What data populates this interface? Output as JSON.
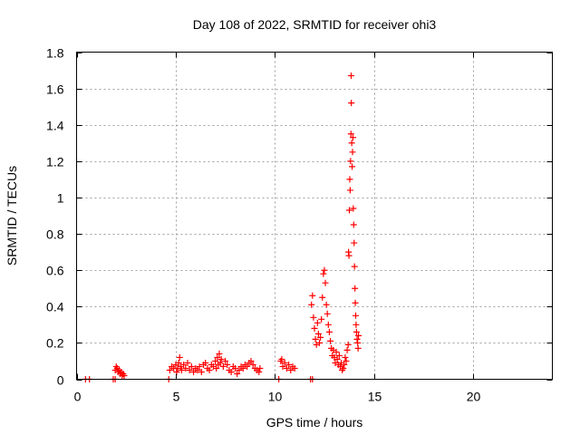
{
  "chart_data": {
    "type": "scatter",
    "title": "Day 108 of 2022, SRMTID for receiver ohi3",
    "xlabel": "GPS time / hours",
    "ylabel": "SRMTID / TECUs",
    "xlim": [
      0,
      24
    ],
    "ylim": [
      0,
      1.8
    ],
    "xticks": [
      0,
      5,
      10,
      15,
      20
    ],
    "xtick_labels": [
      "0",
      "5",
      "10",
      "15",
      "20"
    ],
    "yticks": [
      0,
      0.2,
      0.4,
      0.6,
      0.8,
      1.0,
      1.2,
      1.4,
      1.6,
      1.8
    ],
    "ytick_labels": [
      "0",
      "0.2",
      "0.4",
      "0.6",
      "0.8",
      "1",
      "1.2",
      "1.4",
      "1.6",
      "1.8"
    ],
    "grid": true,
    "marker": "+",
    "color": "#ff0000",
    "series": [
      {
        "name": "SRMTID",
        "points": [
          [
            0.45,
            0.0
          ],
          [
            0.65,
            0.0
          ],
          [
            1.85,
            0.0
          ],
          [
            1.95,
            0.0
          ],
          [
            4.65,
            0.0
          ],
          [
            10.2,
            0.0
          ],
          [
            11.8,
            0.0
          ],
          [
            11.9,
            0.0
          ],
          [
            1.95,
            0.05
          ],
          [
            2.0,
            0.07
          ],
          [
            2.05,
            0.06
          ],
          [
            2.1,
            0.04
          ],
          [
            2.15,
            0.05
          ],
          [
            2.2,
            0.03
          ],
          [
            2.25,
            0.04
          ],
          [
            2.3,
            0.02
          ],
          [
            2.35,
            0.03
          ],
          [
            2.4,
            0.02
          ],
          [
            4.7,
            0.05
          ],
          [
            4.8,
            0.07
          ],
          [
            4.9,
            0.06
          ],
          [
            5.0,
            0.08
          ],
          [
            5.05,
            0.04
          ],
          [
            5.1,
            0.06
          ],
          [
            5.15,
            0.09
          ],
          [
            5.2,
            0.12
          ],
          [
            5.25,
            0.07
          ],
          [
            5.3,
            0.05
          ],
          [
            5.4,
            0.08
          ],
          [
            5.5,
            0.06
          ],
          [
            5.6,
            0.09
          ],
          [
            5.7,
            0.05
          ],
          [
            5.8,
            0.07
          ],
          [
            5.9,
            0.04
          ],
          [
            6.0,
            0.06
          ],
          [
            6.1,
            0.05
          ],
          [
            6.2,
            0.07
          ],
          [
            6.3,
            0.04
          ],
          [
            6.4,
            0.08
          ],
          [
            6.5,
            0.09
          ],
          [
            6.6,
            0.06
          ],
          [
            6.7,
            0.05
          ],
          [
            6.8,
            0.08
          ],
          [
            6.9,
            0.07
          ],
          [
            7.0,
            0.1
          ],
          [
            7.05,
            0.06
          ],
          [
            7.1,
            0.12
          ],
          [
            7.15,
            0.08
          ],
          [
            7.2,
            0.14
          ],
          [
            7.25,
            0.09
          ],
          [
            7.3,
            0.11
          ],
          [
            7.4,
            0.07
          ],
          [
            7.5,
            0.1
          ],
          [
            7.6,
            0.08
          ],
          [
            7.7,
            0.05
          ],
          [
            7.8,
            0.04
          ],
          [
            7.9,
            0.07
          ],
          [
            8.0,
            0.06
          ],
          [
            8.1,
            0.03
          ],
          [
            8.2,
            0.05
          ],
          [
            8.3,
            0.07
          ],
          [
            8.4,
            0.06
          ],
          [
            8.5,
            0.08
          ],
          [
            8.6,
            0.07
          ],
          [
            8.7,
            0.09
          ],
          [
            8.8,
            0.1
          ],
          [
            8.9,
            0.08
          ],
          [
            9.0,
            0.06
          ],
          [
            9.1,
            0.05
          ],
          [
            9.2,
            0.04
          ],
          [
            9.25,
            0.06
          ],
          [
            10.3,
            0.1
          ],
          [
            10.35,
            0.11
          ],
          [
            10.4,
            0.07
          ],
          [
            10.5,
            0.09
          ],
          [
            10.6,
            0.06
          ],
          [
            10.7,
            0.08
          ],
          [
            10.8,
            0.05
          ],
          [
            10.9,
            0.07
          ],
          [
            11.0,
            0.06
          ],
          [
            11.85,
            0.41
          ],
          [
            11.9,
            0.46
          ],
          [
            11.95,
            0.34
          ],
          [
            12.0,
            0.28
          ],
          [
            12.05,
            0.22
          ],
          [
            12.1,
            0.19
          ],
          [
            12.15,
            0.31
          ],
          [
            12.2,
            0.25
          ],
          [
            12.25,
            0.2
          ],
          [
            12.3,
            0.23
          ],
          [
            12.35,
            0.33
          ],
          [
            12.4,
            0.45
          ],
          [
            12.45,
            0.58
          ],
          [
            12.5,
            0.6
          ],
          [
            12.55,
            0.53
          ],
          [
            12.6,
            0.41
          ],
          [
            12.65,
            0.36
          ],
          [
            12.7,
            0.3
          ],
          [
            12.75,
            0.26
          ],
          [
            12.8,
            0.21
          ],
          [
            12.85,
            0.17
          ],
          [
            12.9,
            0.13
          ],
          [
            12.95,
            0.16
          ],
          [
            13.0,
            0.12
          ],
          [
            13.05,
            0.09
          ],
          [
            13.1,
            0.15
          ],
          [
            13.15,
            0.11
          ],
          [
            13.2,
            0.08
          ],
          [
            13.25,
            0.13
          ],
          [
            13.3,
            0.07
          ],
          [
            13.35,
            0.09
          ],
          [
            13.4,
            0.05
          ],
          [
            13.45,
            0.06
          ],
          [
            13.5,
            0.08
          ],
          [
            13.55,
            0.12
          ],
          [
            13.6,
            0.1
          ],
          [
            13.65,
            0.16
          ],
          [
            13.7,
            0.19
          ],
          [
            13.72,
            0.7
          ],
          [
            13.74,
            0.68
          ],
          [
            13.76,
            0.93
          ],
          [
            13.78,
            1.1
          ],
          [
            13.8,
            1.04
          ],
          [
            13.82,
            1.2
          ],
          [
            13.84,
            1.35
          ],
          [
            13.85,
            1.67
          ],
          [
            13.86,
            1.52
          ],
          [
            13.88,
            1.3
          ],
          [
            13.9,
            1.17
          ],
          [
            13.92,
            1.25
          ],
          [
            13.94,
            1.33
          ],
          [
            13.96,
            0.94
          ],
          [
            13.98,
            0.85
          ],
          [
            14.0,
            0.75
          ],
          [
            14.02,
            0.62
          ],
          [
            14.04,
            0.5
          ],
          [
            14.06,
            0.42
          ],
          [
            14.08,
            0.35
          ],
          [
            14.1,
            0.3
          ],
          [
            14.12,
            0.26
          ],
          [
            14.15,
            0.22
          ],
          [
            14.18,
            0.2
          ],
          [
            14.2,
            0.17
          ],
          [
            14.22,
            0.24
          ]
        ]
      }
    ]
  }
}
